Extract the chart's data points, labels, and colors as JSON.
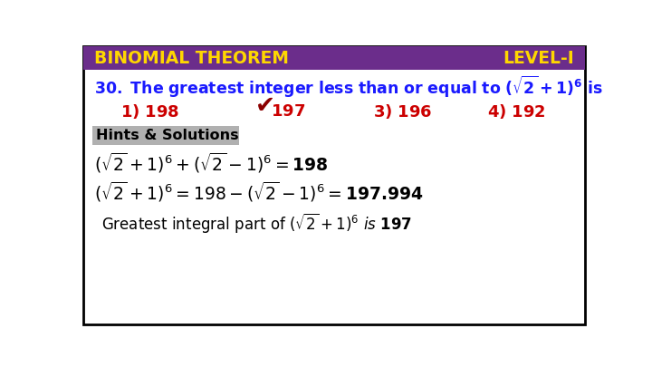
{
  "bg_color": "#ffffff",
  "border_color": "#000000",
  "header_bg": "#6B2D8B",
  "header_text_left": "BINOMIAL THEOREM",
  "header_text_right": "LEVEL-I",
  "header_text_color": "#FFD700",
  "question_color": "#1a1aff",
  "option_color": "#cc0000",
  "correct_check_color": "#8B0000",
  "hints_bg": "#b0b0b0",
  "hints_text_color": "#000000",
  "solution_color": "#000000"
}
